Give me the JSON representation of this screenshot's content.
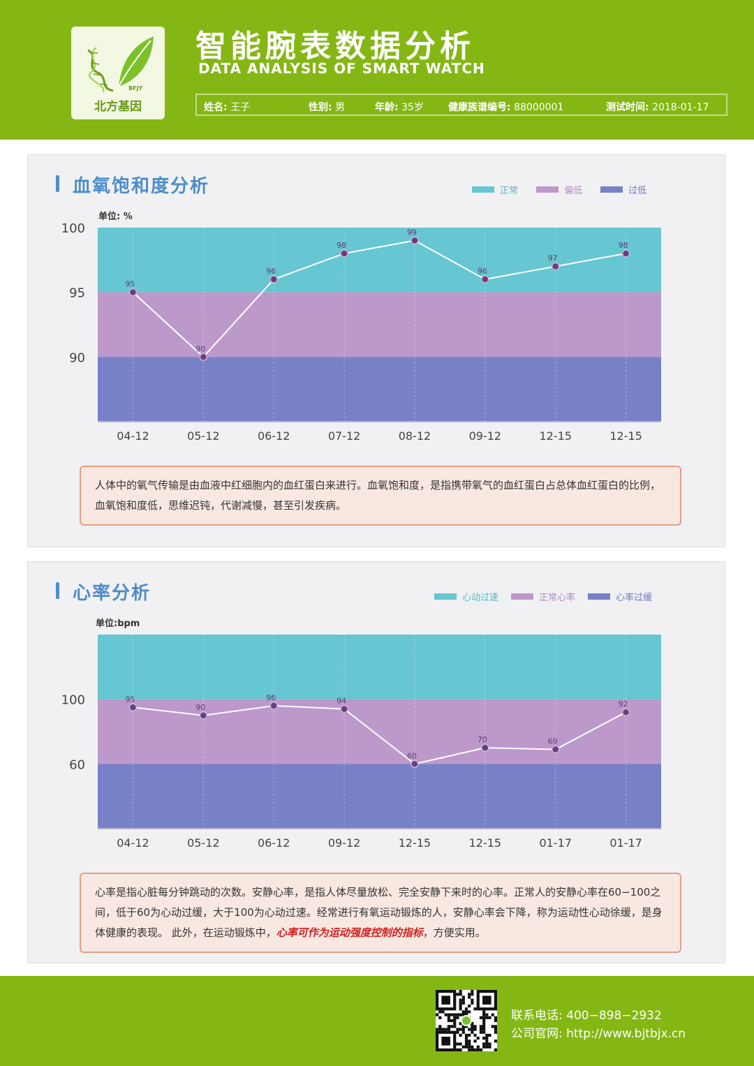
{
  "header": {
    "title": "智能腕表数据分析",
    "subtitle": "DATA ANALYSIS OF SMART WATCH",
    "logo_text": "北方基因",
    "logo_small": "BFJY",
    "info": {
      "name_label": "姓名:",
      "name_value": "王子",
      "gender_label": "性别:",
      "gender_value": "男",
      "age_label": "年龄:",
      "age_value": "35岁",
      "id_label": "健康族谱编号:",
      "id_value": "88000001",
      "date_label": "测试时间:",
      "date_value": "2018-01-17"
    }
  },
  "oxygen": {
    "section_title": "血氧饱和度分析",
    "legend": [
      "正常",
      "偏低",
      "过低"
    ],
    "description": "人体中的氧气传输是由血液中红细胞内的血红蛋白来进行。血氧饱和度，是指携带氧气的血红蛋白占总体血红蛋白的比例，血氧饱和度低，思维迟钝，代谢减慢，甚至引发疾病。"
  },
  "heart": {
    "section_title": "心率分析",
    "legend": [
      "心动过速",
      "正常心率",
      "心率过缓"
    ],
    "description_1": "心率是指心脏每分钟跳动的次数。安静心率，是指人体尽量放松、完全安静下来时的心率。正常人的安静心率在60−100之间，低于60为心动过缓，大于100为心动过速。经常进行有氧运动锻炼的人，安静心率会下降，称为运动性心动徐缓，是身体健康的表现。 此外，在运动锻炼中，",
    "description_highlight": "心率可作为运动强度控制的指标",
    "description_2": "，方便实用。"
  },
  "colors": {
    "green": "#84b714",
    "band_top": "#66c6d1",
    "band_mid": "#bd99cb",
    "band_low": "#7880c8",
    "line": "#ffffff",
    "point": "#6a3e7e"
  },
  "chart_data": [
    {
      "type": "line",
      "unit_label": "单位: %",
      "categories": [
        "04-12",
        "05-12",
        "06-12",
        "07-12",
        "08-12",
        "09-12",
        "12-15",
        "12-15"
      ],
      "values": [
        95,
        90,
        96,
        98,
        99,
        96,
        97,
        98
      ],
      "y_ticks": [
        90,
        95,
        100
      ],
      "ylim": [
        85,
        100
      ],
      "bands": [
        {
          "name": "正常",
          "from": 95,
          "to": 100,
          "color": "#66c6d1"
        },
        {
          "name": "偏低",
          "from": 90,
          "to": 95,
          "color": "#bd99cb"
        },
        {
          "name": "过低",
          "from": 85,
          "to": 90,
          "color": "#7880c8"
        }
      ],
      "legend_position": "top-right",
      "grid": true
    },
    {
      "type": "line",
      "unit_label": "单位:bpm",
      "categories": [
        "04-12",
        "05-12",
        "06-12",
        "09-12",
        "12-15",
        "12-15",
        "01-17",
        "01-17"
      ],
      "values": [
        95,
        90,
        96,
        94,
        60,
        70,
        69,
        92
      ],
      "y_ticks": [
        60,
        100
      ],
      "ylim": [
        20,
        140
      ],
      "bands": [
        {
          "name": "心动过速",
          "from": 100,
          "to": 140,
          "color": "#66c6d1"
        },
        {
          "name": "正常心率",
          "from": 60,
          "to": 100,
          "color": "#bd99cb"
        },
        {
          "name": "心率过缓",
          "from": 20,
          "to": 60,
          "color": "#7880c8"
        }
      ],
      "legend_position": "top-right",
      "grid": true
    }
  ],
  "footer": {
    "phone_label": "联系电话:",
    "phone_value": "400−898−2932",
    "site_label": "公司官网:",
    "site_value": "http://www.bjtbjx.cn"
  }
}
